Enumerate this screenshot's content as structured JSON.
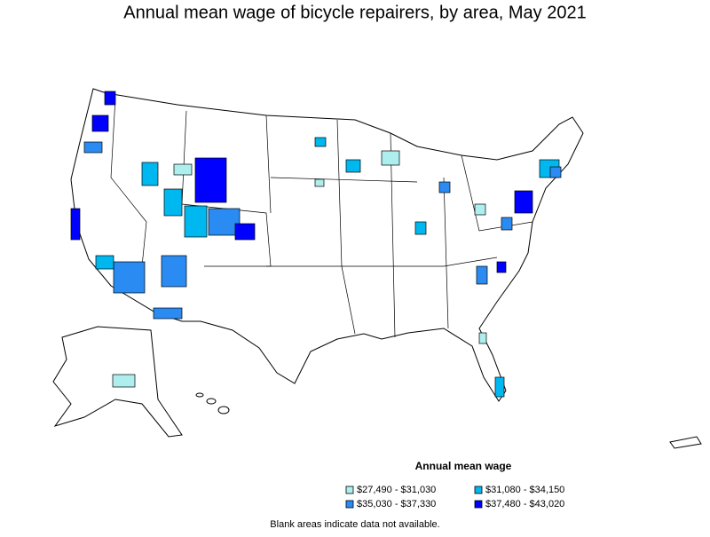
{
  "title": "Annual mean wage of bicycle repairers, by area, May 2021",
  "legend": {
    "title": "Annual mean wage",
    "items": [
      {
        "label": "$27,490 - $31,030",
        "color": "#aeeeee"
      },
      {
        "label": "$31,080 - $34,150",
        "color": "#00b8f0"
      },
      {
        "label": "$35,030 - $37,330",
        "color": "#2a8bf2"
      },
      {
        "label": "$37,480 - $43,020",
        "color": "#0000ff"
      }
    ]
  },
  "footnote": "Blank areas indicate data not available."
}
